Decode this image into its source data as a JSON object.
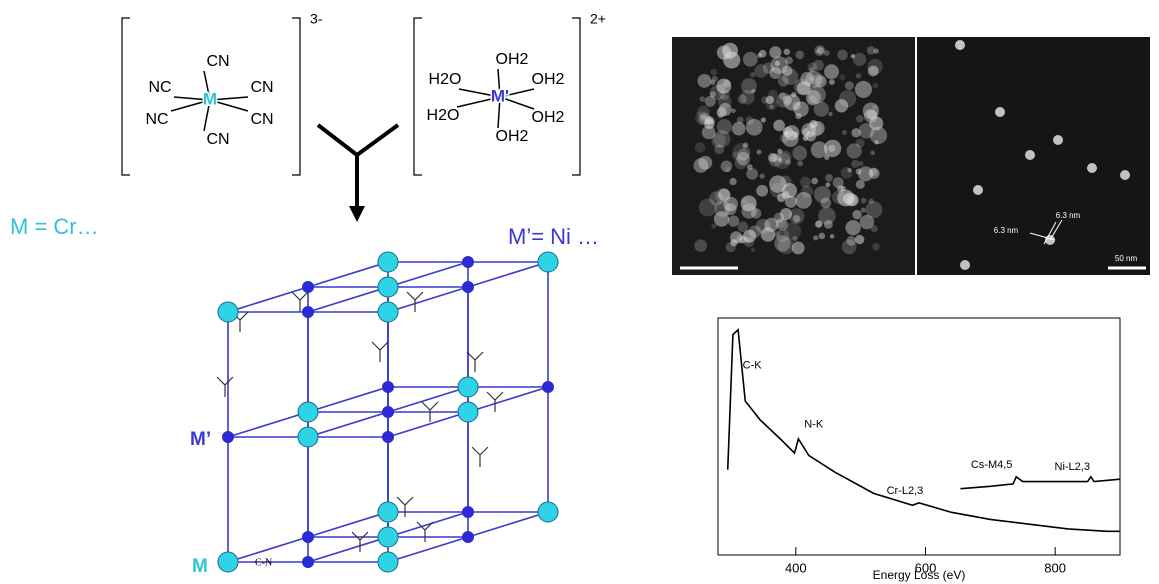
{
  "complex_1": {
    "center": "M",
    "ligands": [
      "CN",
      "NC",
      "CN",
      "NC",
      "CN",
      "CN"
    ],
    "charge": "3-"
  },
  "complex_2": {
    "center": "M'",
    "ligands": [
      "OH2",
      "H2O",
      "OH2",
      "H2O",
      "OH2",
      "OH2"
    ],
    "charge": "2+"
  },
  "label_m": "M = Cr…",
  "label_m2": "M’= Ni …",
  "lattice": {
    "label_m2": "M’",
    "label_m": "M",
    "bond": "C-N"
  },
  "micrograph": {
    "labels": [
      "6.3 nm",
      "6.3 nm"
    ],
    "scale_right": "50 nm"
  },
  "chart_data": {
    "type": "line",
    "xlabel": "Energy Loss (eV)",
    "xlim": [
      280,
      900
    ],
    "xticks": [
      400,
      600,
      800
    ],
    "ylim": [
      0,
      100
    ],
    "series": [
      {
        "x": [
          295,
          303,
          311,
          322,
          345,
          376,
          398,
          404,
          420,
          460,
          520,
          580,
          590,
          640,
          700,
          760,
          820,
          880,
          900
        ],
        "values": [
          36,
          93,
          95,
          65,
          57,
          49,
          43,
          49,
          42,
          35,
          26,
          21,
          22,
          18,
          15,
          13,
          11,
          10,
          10
        ],
        "color": "#000000"
      },
      {
        "x": [
          654,
          700,
          735,
          740,
          750,
          800,
          850,
          855,
          860,
          900
        ],
        "values": [
          28,
          29,
          30,
          33,
          31,
          31,
          31,
          33,
          31,
          32
        ],
        "color": "#000000"
      }
    ],
    "annotations": [
      {
        "text": "C-K",
        "x": 318,
        "y": 80
      },
      {
        "text": "N-K",
        "x": 413,
        "y": 55
      },
      {
        "text": "Cr-L2,3",
        "x": 540,
        "y": 27
      },
      {
        "text": "Cs-M4,5",
        "x": 670,
        "y": 38
      },
      {
        "text": "Ni-L2,3",
        "x": 799,
        "y": 37
      }
    ]
  }
}
